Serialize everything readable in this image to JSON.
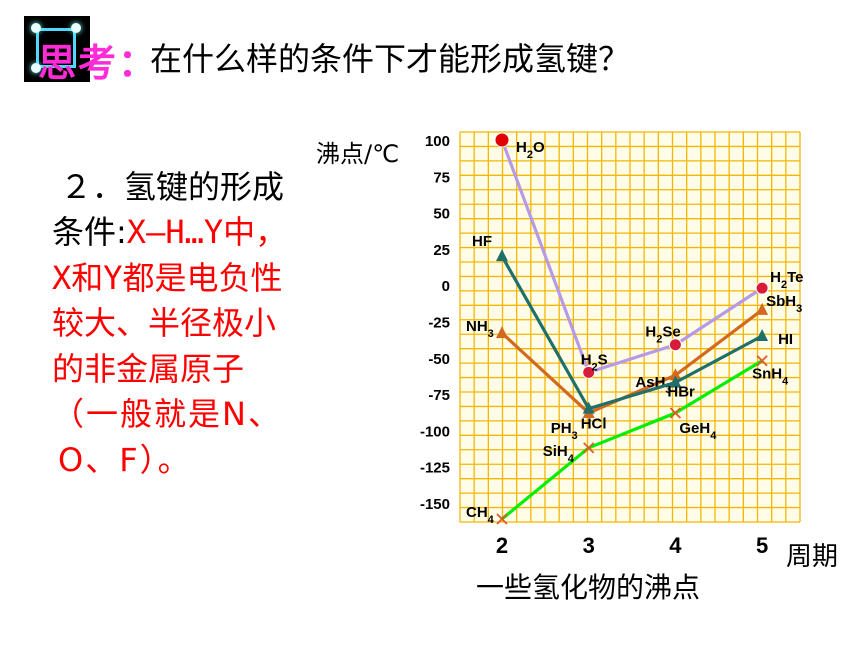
{
  "header": {
    "badge_text": "思考：",
    "question": "在什么样的条件下才能形成氢键？"
  },
  "text": {
    "line1": "２．氢键的形成",
    "line2_black": "条件:",
    "line2_red": "X—H…Y中，",
    "line3": "X和Y都是电负性",
    "line4": "较大、半径极小",
    "line5": "的非金属原子",
    "line6": "（一般就是N、",
    "line7": "O、F）。"
  },
  "colors": {
    "grid_line": "#f2b705",
    "grid_bg": "#fffde8",
    "group_IV": "#00ee00",
    "group_V": "#d2691e",
    "group_VI": "#b69ae8",
    "group_VII": "#1f6f6a",
    "h2o_point": "#e00000"
  },
  "chart_data": {
    "type": "line",
    "caption": "一些氢化物的沸点",
    "ylabel": "沸点/℃",
    "xlabel": "周期",
    "x": [
      2,
      3,
      4,
      5
    ],
    "ylim": [
      -150,
      100
    ],
    "yticks": [
      100,
      75,
      50,
      25,
      0,
      -25,
      -50,
      -75,
      -100,
      -125,
      -150
    ],
    "grid": true,
    "series": [
      {
        "key": "IV",
        "marker": "x",
        "color": "#00ee00",
        "values": [
          -161,
          -112,
          -88,
          -52
        ],
        "labels": [
          "CH4",
          "SiH4",
          "GeH4",
          "SnH4"
        ]
      },
      {
        "key": "V",
        "marker": "triangle",
        "color": "#d2691e",
        "values": [
          -33,
          -88,
          -62,
          -17
        ],
        "labels": [
          "NH3",
          "PH3",
          "AsH3",
          "SbH3"
        ]
      },
      {
        "key": "VI",
        "marker": "circle",
        "color": "#b69ae8",
        "values": [
          100,
          -60,
          -41,
          -2
        ],
        "labels": [
          "H2O",
          "H2S",
          "H2Se",
          "H2Te"
        ]
      },
      {
        "key": "VII",
        "marker": "triangle",
        "color": "#1f6f6a",
        "values": [
          20,
          -85,
          -67,
          -35
        ],
        "labels": [
          "HF",
          "HCl",
          "HBr",
          "HI"
        ]
      }
    ]
  }
}
